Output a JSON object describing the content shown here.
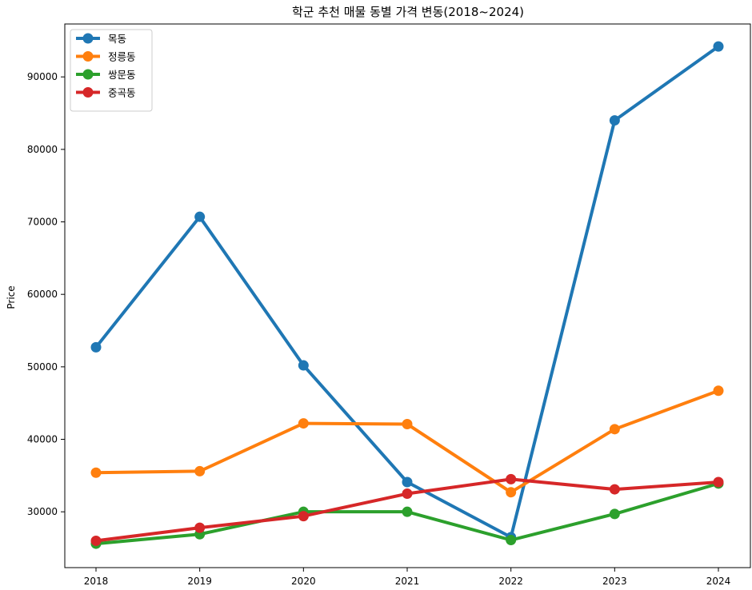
{
  "chart_data": {
    "type": "line",
    "title": "학군 추천 매물 동별 가격 변동(2018~2024)",
    "xlabel": "",
    "ylabel": "Price",
    "categories": [
      "2018",
      "2019",
      "2020",
      "2021",
      "2022",
      "2023",
      "2024"
    ],
    "ylim": [
      22300,
      97300
    ],
    "yticks": [
      30000,
      40000,
      50000,
      60000,
      70000,
      80000,
      90000
    ],
    "grid": false,
    "legend_position": "top-left",
    "series": [
      {
        "name": "목동",
        "color": "#1f77b4",
        "values": [
          52700,
          70700,
          50200,
          34100,
          26500,
          84000,
          94200
        ]
      },
      {
        "name": "정릉동",
        "color": "#ff7f0e",
        "values": [
          35400,
          35600,
          42200,
          42100,
          32700,
          41400,
          46700
        ]
      },
      {
        "name": "쌍문동",
        "color": "#2ca02c",
        "values": [
          25600,
          26900,
          30000,
          30000,
          26100,
          29700,
          33900
        ]
      },
      {
        "name": "중곡동",
        "color": "#d62728",
        "values": [
          26000,
          27800,
          29400,
          32500,
          34500,
          33100,
          34100
        ]
      }
    ]
  }
}
